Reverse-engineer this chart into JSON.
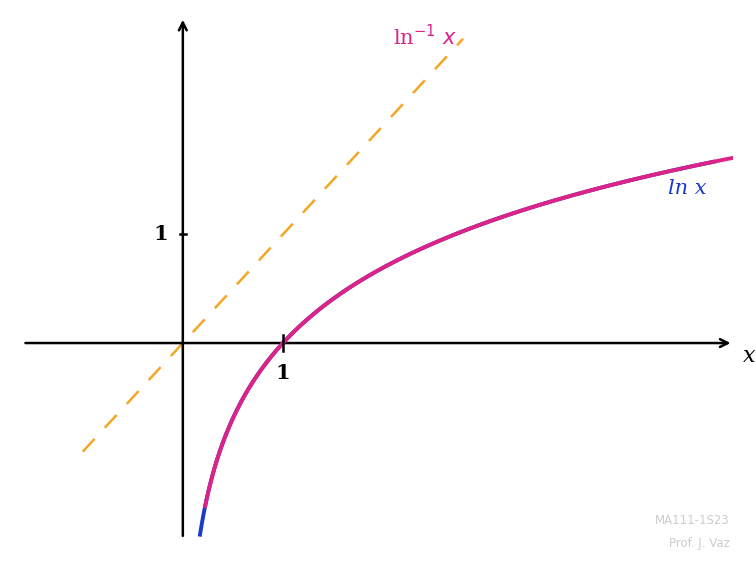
{
  "background_color": "#ffffff",
  "ln_color": "#1a3acc",
  "exp_color": "#dd2288",
  "diag_color": "#f5a623",
  "axis_color": "#000000",
  "label_color_ln": "#1a3acc",
  "label_color_exp": "#dd2288",
  "watermark_color": "#cccccc",
  "watermark_line1": "MA111-1S23",
  "watermark_line2": "Prof. J. Vaz",
  "x_label": "x",
  "ln_label": "ln x",
  "tick_label_1_x": "1",
  "tick_label_1_y": "1",
  "x_min": -1.6,
  "x_max": 5.5,
  "y_min": -1.8,
  "y_max": 3.0,
  "diag_x_start": -1.0,
  "diag_x_end": 2.8,
  "exp_y_start": -1.5,
  "exp_y_end": 2.95,
  "ln_x_start": 0.08,
  "ln_x_end": 5.3
}
